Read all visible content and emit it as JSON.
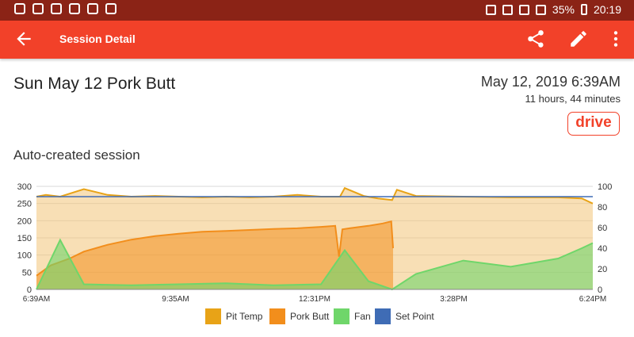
{
  "status_bar": {
    "battery_percent": "35%",
    "time": "20:19"
  },
  "app_bar": {
    "title": "Session Detail",
    "back_icon": "arrow-left-icon",
    "share_icon": "share-icon",
    "edit_icon": "pencil-icon",
    "menu_icon": "more-vert-icon",
    "color": "#f24129",
    "status_color": "#8b2316"
  },
  "session": {
    "title": "Sun May 12 Pork Butt",
    "date": "May 12, 2019 6:39AM",
    "duration": "11 hours, 44 minutes",
    "badge": "drive",
    "notes": "Auto-created session"
  },
  "chart_data": {
    "type": "line",
    "x_labels": [
      "6:39AM",
      "9:35AM",
      "12:31PM",
      "3:28PM",
      "6:24PM"
    ],
    "x_range": [
      "6:39AM",
      "6:24PM"
    ],
    "left_axis": {
      "ticks": [
        0,
        50,
        100,
        150,
        200,
        250,
        300
      ],
      "ylim": [
        0,
        300
      ]
    },
    "right_axis": {
      "ticks": [
        0,
        20,
        40,
        60,
        80,
        100
      ],
      "ylim": [
        0,
        100
      ]
    },
    "grid": true,
    "legend_position": "bottom",
    "series": [
      {
        "name": "Pit Temp",
        "color": "#e8a317",
        "axis": "left",
        "x": [
          0,
          0.2,
          0.5,
          1.0,
          1.5,
          2.0,
          2.5,
          3.0,
          3.5,
          4.0,
          4.5,
          5.0,
          5.5,
          6.0,
          6.4,
          6.5,
          6.9,
          7.2,
          7.5,
          7.6,
          8.0,
          9.0,
          10.0,
          11.0,
          11.5,
          11.73
        ],
        "values": [
          270,
          275,
          270,
          292,
          275,
          270,
          272,
          270,
          268,
          270,
          268,
          270,
          275,
          270,
          270,
          295,
          272,
          265,
          260,
          290,
          272,
          270,
          268,
          268,
          265,
          250
        ]
      },
      {
        "name": "Pork Butt",
        "color": "#f28e1c",
        "axis": "left",
        "x": [
          0,
          0.3,
          0.7,
          1.0,
          1.5,
          2.0,
          2.5,
          3.0,
          3.5,
          4.0,
          4.5,
          5.0,
          5.5,
          6.0,
          6.3,
          6.38,
          6.45,
          6.6,
          7.0,
          7.3,
          7.48,
          7.52
        ],
        "values": [
          40,
          70,
          90,
          110,
          130,
          145,
          155,
          162,
          168,
          170,
          173,
          176,
          178,
          182,
          185,
          95,
          175,
          178,
          185,
          192,
          198,
          120
        ]
      },
      {
        "name": "Fan",
        "color": "#6fd66a",
        "axis": "right",
        "x": [
          0,
          0.5,
          1.0,
          2.0,
          3.0,
          4.0,
          5.0,
          6.0,
          6.5,
          7.0,
          7.5,
          8.0,
          9.0,
          10.0,
          11.0,
          11.5,
          11.73
        ],
        "values": [
          0,
          48,
          5,
          4,
          5,
          6,
          4,
          5,
          38,
          8,
          0,
          15,
          28,
          22,
          30,
          40,
          45
        ]
      },
      {
        "name": "Set Point",
        "color": "#3f6cb5",
        "axis": "left",
        "x": [
          0,
          11.73
        ],
        "values": [
          270,
          270
        ]
      }
    ]
  }
}
